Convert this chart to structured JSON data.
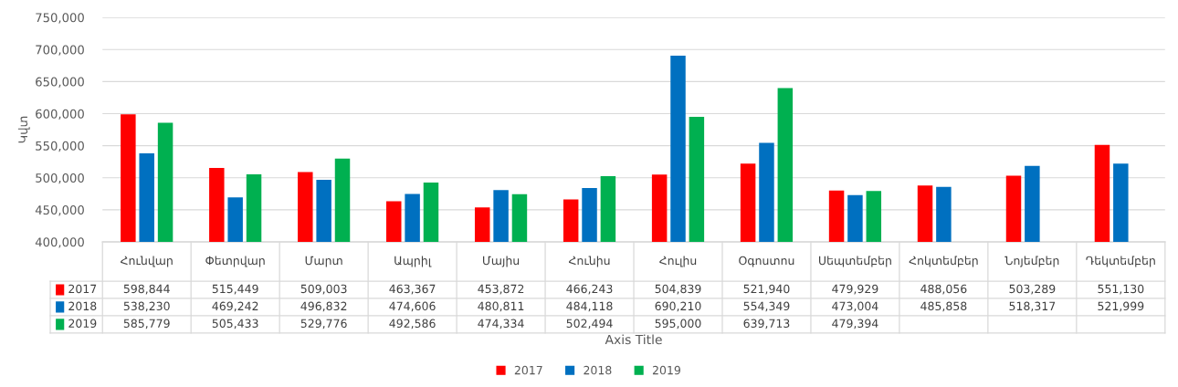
{
  "chart_data": {
    "type": "bar",
    "ylabel": "Կվտ",
    "annotations": [
      "Axis Title"
    ],
    "categories": [
      "Հունվար",
      "Փետրվար",
      "Մարտ",
      "Ապրիլ",
      "Մայիս",
      "Հունիս",
      "Հուլիս",
      "Օգոստոս",
      "Սեպտեմբեր",
      "Հոկտեմբեր",
      "Նոյեմբեր",
      "Դեկտեմբեր"
    ],
    "series": [
      {
        "name": "2017",
        "color": "#ff0000",
        "values": [
          598844,
          515449,
          509003,
          463367,
          453872,
          466243,
          504839,
          521940,
          479929,
          488056,
          503289,
          551130
        ],
        "value_labels": [
          "598,844",
          "515,449",
          "509,003",
          "463,367",
          "453,872",
          "466,243",
          "504,839",
          "521,940",
          "479,929",
          "488,056",
          "503,289",
          "551,130"
        ]
      },
      {
        "name": "2018",
        "color": "#0070c0",
        "values": [
          538230,
          469242,
          496832,
          474606,
          480811,
          484118,
          690210,
          554349,
          473004,
          485858,
          518317,
          521999
        ],
        "value_labels": [
          "538,230",
          "469,242",
          "496,832",
          "474,606",
          "480,811",
          "484,118",
          "690,210",
          "554,349",
          "473,004",
          "485,858",
          "518,317",
          "521,999"
        ]
      },
      {
        "name": "2019",
        "color": "#00b050",
        "values": [
          585779,
          505433,
          529776,
          492586,
          474334,
          502494,
          595000,
          639713,
          479394,
          null,
          null,
          null
        ],
        "value_labels": [
          "585,779",
          "505,433",
          "529,776",
          "492,586",
          "474,334",
          "502,494",
          "595,000",
          "639,713",
          "479,394",
          null,
          null,
          null
        ]
      }
    ],
    "ylim": [
      400000,
      750000
    ],
    "yticks": [
      {
        "value": 400000,
        "label": "400,000"
      },
      {
        "value": 450000,
        "label": "450,000"
      },
      {
        "value": 500000,
        "label": "500,000"
      },
      {
        "value": 550000,
        "label": "550,000"
      },
      {
        "value": 600000,
        "label": "600,000"
      },
      {
        "value": 650000,
        "label": "650,000"
      },
      {
        "value": 700000,
        "label": "700,000"
      },
      {
        "value": 750000,
        "label": "750,000"
      }
    ],
    "grid": "y",
    "legend": "bottom"
  }
}
